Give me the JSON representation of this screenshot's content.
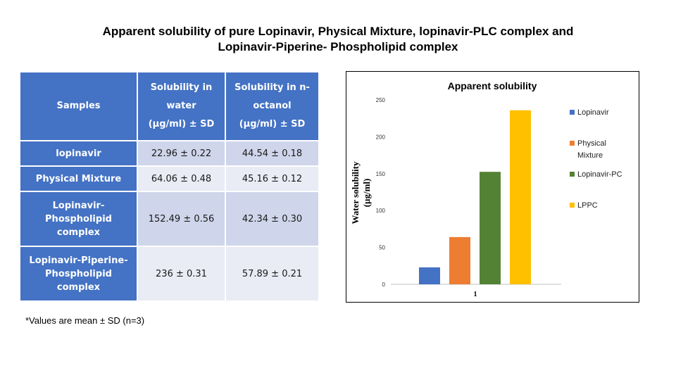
{
  "slide": {
    "title_line1": "Apparent solubility of pure Lopinavir, Physical Mixture, lopinavir-PLC complex and",
    "title_line2": "Lopinavir-Piperine- Phospholipid complex",
    "footnote": "*Values are mean ± SD (n=3)"
  },
  "table": {
    "headers": {
      "samples": "Samples",
      "water_l1": "Solubility in",
      "water_l2": "water",
      "water_l3": "(µg/ml) ± SD",
      "oct_l1": "Solubility in n-",
      "oct_l2": "octanol",
      "oct_l3": "(µg/ml) ± SD"
    },
    "rows": [
      {
        "sample_l1": "lopinavir",
        "sample_l2": "",
        "water": "22.96 ± 0.22",
        "octanol": "44.54 ± 0.18"
      },
      {
        "sample_l1": "Physical Mixture",
        "sample_l2": "",
        "water": "64.06 ± 0.48",
        "octanol": "45.16 ± 0.12"
      },
      {
        "sample_l1": "Lopinavir-",
        "sample_l2": "Phospholipid complex",
        "water": "152.49 ± 0.56",
        "octanol": "42.34 ± 0.30"
      },
      {
        "sample_l1": "Lopinavir-Piperine-",
        "sample_l2": "Phospholipid complex",
        "water": "236 ± 0.31",
        "octanol": "57.89 ± 0.21"
      }
    ]
  },
  "chart_data": {
    "type": "bar",
    "title": "Apparent solubility",
    "ylabel_l1": "Water solubility",
    "ylabel_l2": "(µg/ml)",
    "xlabel": "",
    "categories": [
      "1"
    ],
    "ylim": [
      0,
      250
    ],
    "yticks": [
      0,
      50,
      100,
      150,
      200,
      250
    ],
    "grid": false,
    "legend_position": "right",
    "series": [
      {
        "name": "Lopinavir",
        "name_l1": "Lopinavir",
        "name_l2": "",
        "values": [
          22.96
        ],
        "color": "#4472c4"
      },
      {
        "name": "Physical Mixture",
        "name_l1": "Physical",
        "name_l2": "Mixture",
        "values": [
          64.06
        ],
        "color": "#ed7d31"
      },
      {
        "name": "Lopinavir-PC",
        "name_l1": "Lopinavir-PC",
        "name_l2": "",
        "values": [
          152.49
        ],
        "color": "#548235"
      },
      {
        "name": "LPPC",
        "name_l1": "LPPC",
        "name_l2": "",
        "values": [
          236
        ],
        "color": "#ffc000"
      }
    ]
  }
}
